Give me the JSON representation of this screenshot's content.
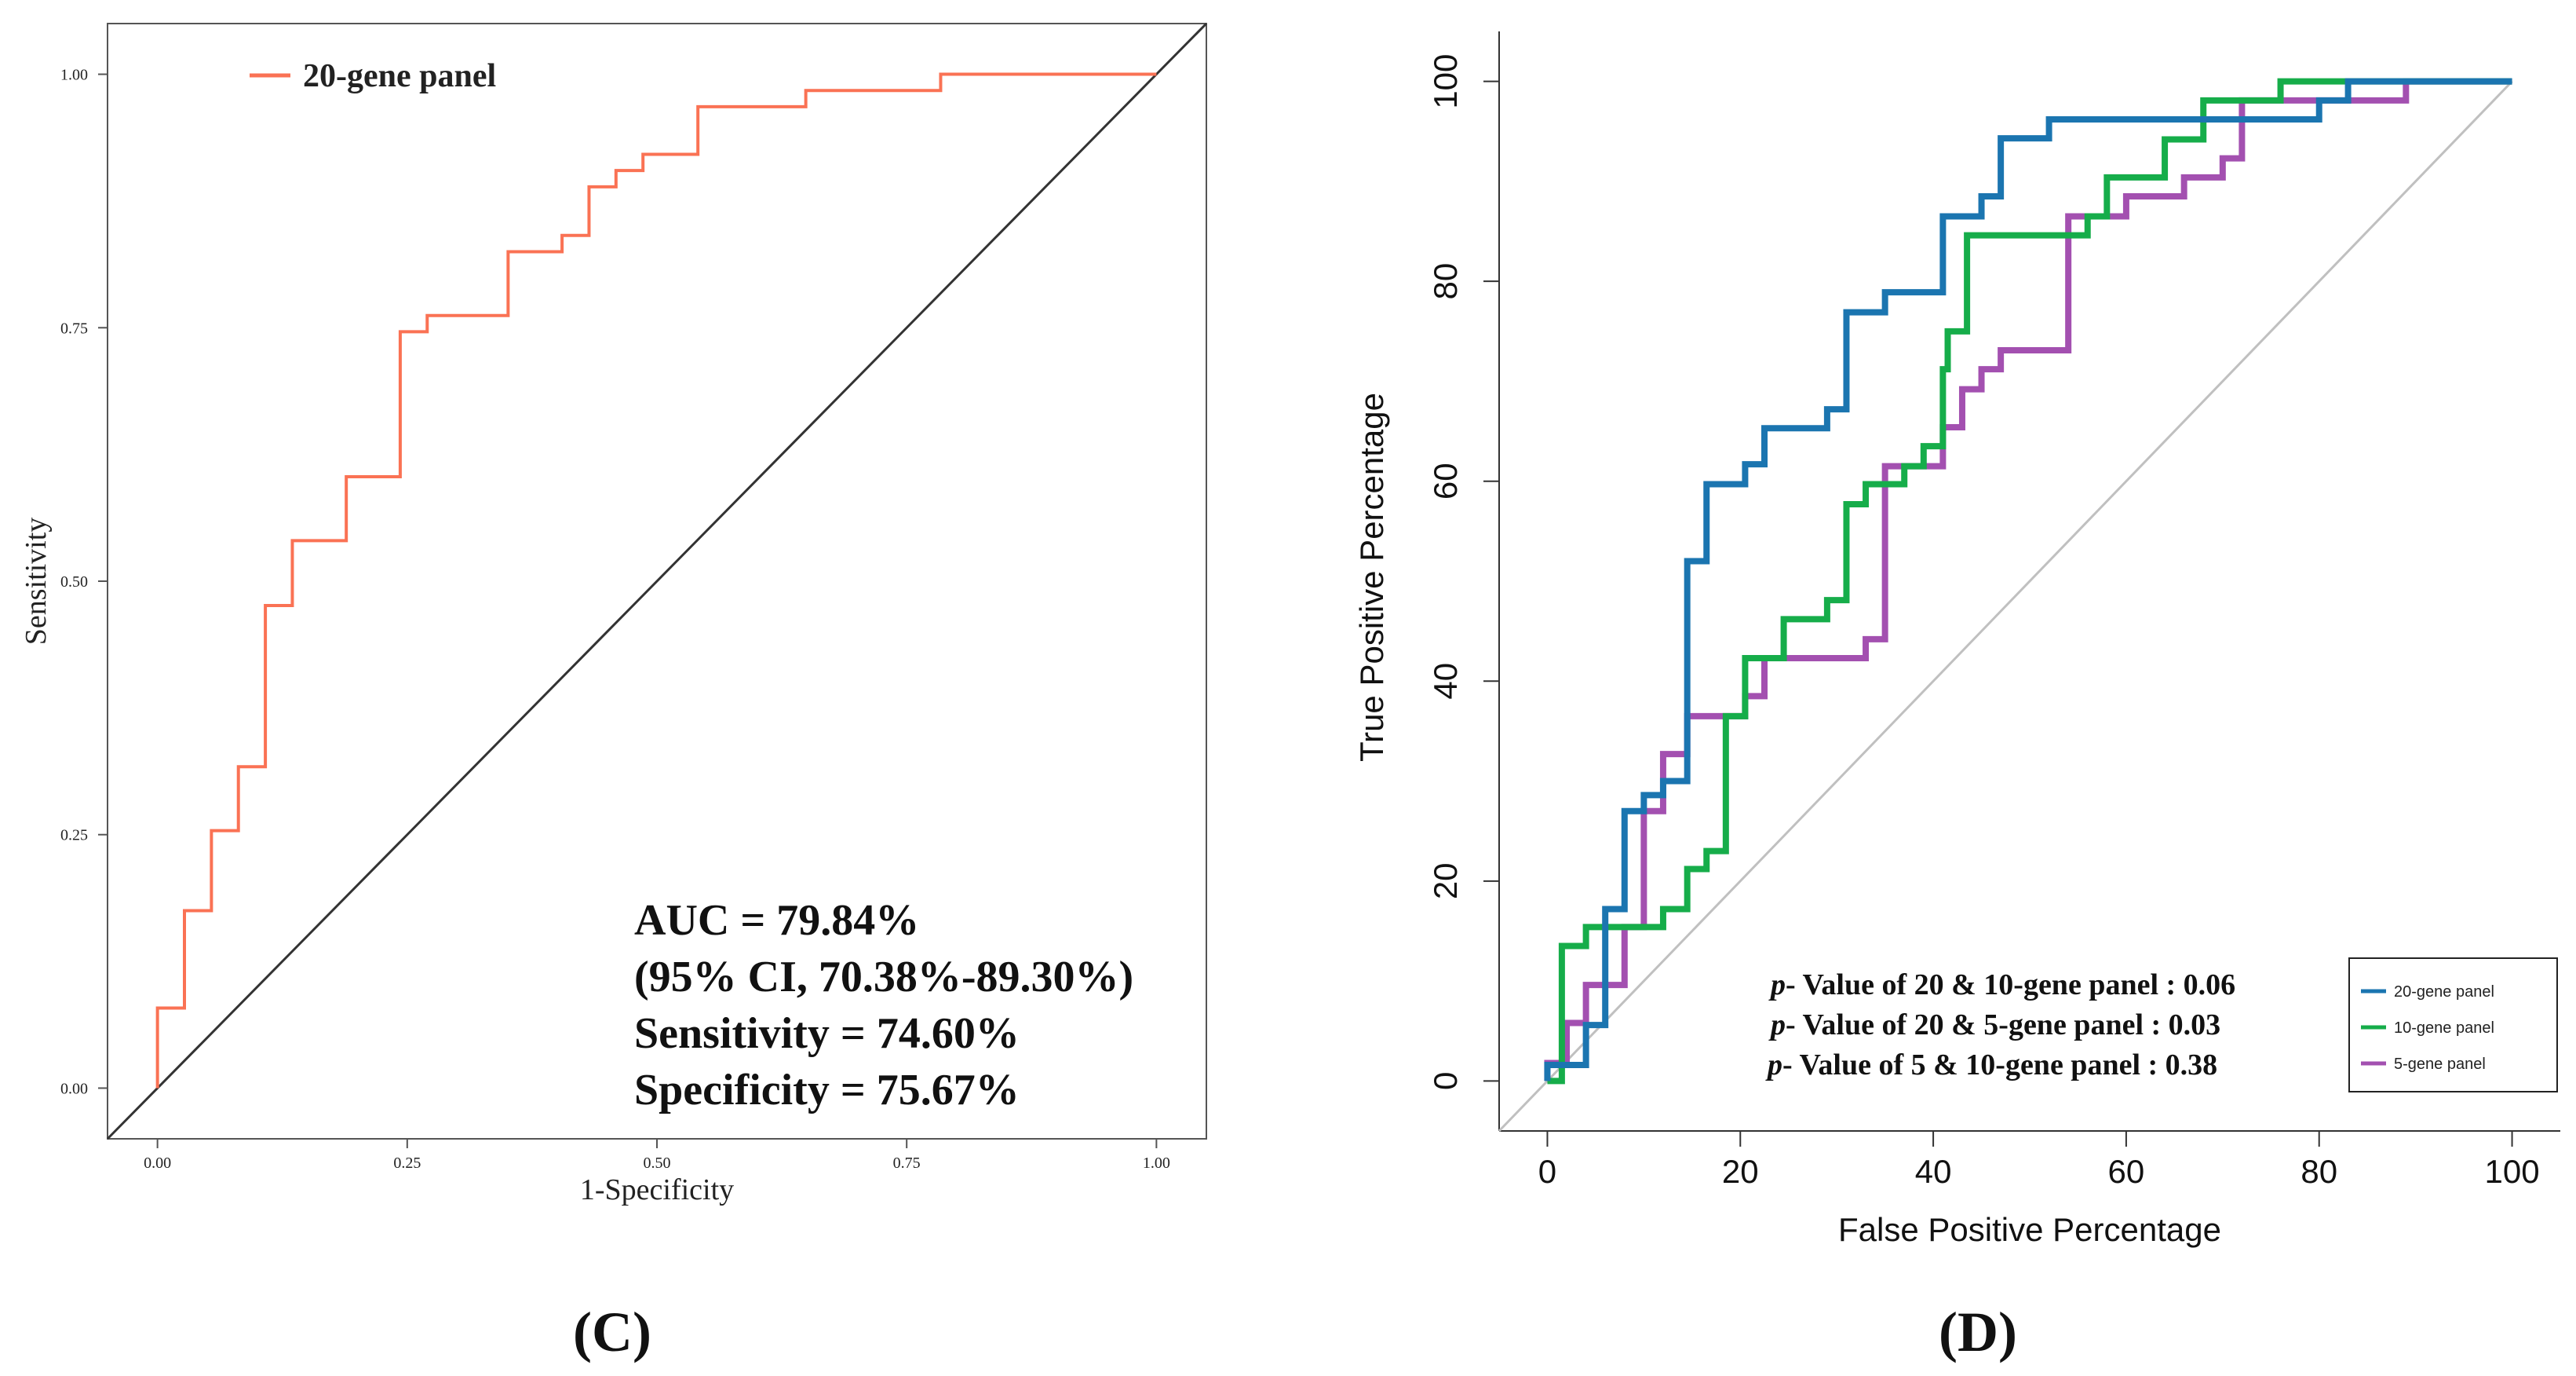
{
  "panels": {
    "left_letter": "(C)",
    "right_letter": "(D)"
  },
  "colors": {
    "orange": "#fa7254",
    "blue": "#1b75b0",
    "green": "#16ad4a",
    "purple": "#a350b0",
    "diagonal_dark": "#333333",
    "diagonal_light": "#c0c0c0",
    "axis": "#555555"
  },
  "chart_data": [
    {
      "id": "C",
      "type": "line",
      "title": "",
      "xlabel": "1-Specificity",
      "ylabel": "Sensitivity",
      "xlim": [
        -0.05,
        1.05
      ],
      "ylim": [
        -0.05,
        1.05
      ],
      "x_ticks": [
        0,
        0.25,
        0.5,
        0.75,
        1.0
      ],
      "x_tick_labels": [
        "0.00",
        "0.25",
        "0.50",
        "0.75",
        "1.00"
      ],
      "y_ticks": [
        0,
        0.25,
        0.5,
        0.75,
        1.0
      ],
      "y_tick_labels": [
        "0.00",
        "0.25",
        "0.50",
        "0.75",
        "1.00"
      ],
      "legend": [
        {
          "label": "20-gene panel",
          "color": "#fa7254"
        }
      ],
      "annotations": [
        "AUC = 79.84%",
        "(95% CI, 70.38%-89.30%)",
        "Sensitivity = 74.60%",
        "Specificity = 75.67%"
      ],
      "reference_line": [
        [
          -0.05,
          -0.05
        ],
        [
          1.05,
          1.05
        ]
      ],
      "series": [
        {
          "name": "20-gene panel",
          "color": "#fa7254",
          "points": [
            [
              0,
              0
            ],
            [
              0,
              0.079
            ],
            [
              0.027,
              0.079
            ],
            [
              0.027,
              0.175
            ],
            [
              0.054,
              0.175
            ],
            [
              0.054,
              0.254
            ],
            [
              0.081,
              0.254
            ],
            [
              0.081,
              0.317
            ],
            [
              0.108,
              0.317
            ],
            [
              0.108,
              0.476
            ],
            [
              0.135,
              0.476
            ],
            [
              0.135,
              0.54
            ],
            [
              0.189,
              0.54
            ],
            [
              0.189,
              0.603
            ],
            [
              0.243,
              0.603
            ],
            [
              0.243,
              0.746
            ],
            [
              0.27,
              0.746
            ],
            [
              0.27,
              0.762
            ],
            [
              0.351,
              0.762
            ],
            [
              0.351,
              0.825
            ],
            [
              0.405,
              0.825
            ],
            [
              0.405,
              0.841
            ],
            [
              0.432,
              0.841
            ],
            [
              0.432,
              0.889
            ],
            [
              0.459,
              0.889
            ],
            [
              0.459,
              0.905
            ],
            [
              0.486,
              0.905
            ],
            [
              0.486,
              0.921
            ],
            [
              0.541,
              0.921
            ],
            [
              0.541,
              0.968
            ],
            [
              0.649,
              0.968
            ],
            [
              0.649,
              0.984
            ],
            [
              0.784,
              0.984
            ],
            [
              0.784,
              1.0
            ],
            [
              1.0,
              1.0
            ]
          ]
        }
      ]
    },
    {
      "id": "D",
      "type": "line",
      "title": "",
      "xlabel": "False Positive Percentage",
      "ylabel": "True Positive Percentage",
      "xlim": [
        -5,
        105
      ],
      "ylim": [
        -5,
        105
      ],
      "x_ticks": [
        0,
        20,
        40,
        60,
        80,
        100
      ],
      "y_ticks": [
        0,
        20,
        40,
        60,
        80,
        100
      ],
      "legend": [
        {
          "label": "20-gene panel",
          "color": "#1b75b0"
        },
        {
          "label": "10-gene panel",
          "color": "#16ad4a"
        },
        {
          "label": "5-gene panel",
          "color": "#a350b0"
        }
      ],
      "annotations": [
        {
          "p": "p",
          "rest": "- Value of 20 & 10-gene panel : 0.06"
        },
        {
          "p": "p",
          "rest": "- Value of 20 & 5-gene panel : 0.03"
        },
        {
          "p": "p",
          "rest": "- Value of 5 & 10-gene panel : 0.38"
        }
      ],
      "reference_line": [
        [
          -5,
          -5
        ],
        [
          100,
          100
        ]
      ],
      "series": [
        {
          "name": "20-gene panel",
          "color": "#1b75b0",
          "points": [
            [
              0,
              0
            ],
            [
              0,
              1.6
            ],
            [
              4,
              1.6
            ],
            [
              4,
              5.6
            ],
            [
              6,
              5.6
            ],
            [
              6,
              17.2
            ],
            [
              8,
              17.2
            ],
            [
              8,
              27
            ],
            [
              10,
              27
            ],
            [
              10,
              28.6
            ],
            [
              12,
              28.6
            ],
            [
              12,
              30
            ],
            [
              14.5,
              30
            ],
            [
              14.5,
              52
            ],
            [
              16.5,
              52
            ],
            [
              16.5,
              59.7
            ],
            [
              20.5,
              59.7
            ],
            [
              20.5,
              61.7
            ],
            [
              22.5,
              61.7
            ],
            [
              22.5,
              65.3
            ],
            [
              29,
              65.3
            ],
            [
              29,
              67.2
            ],
            [
              31,
              67.2
            ],
            [
              31,
              76.9
            ],
            [
              35,
              76.9
            ],
            [
              35,
              78.9
            ],
            [
              41,
              78.9
            ],
            [
              41,
              86.5
            ],
            [
              45,
              86.5
            ],
            [
              45,
              88.5
            ],
            [
              47,
              88.5
            ],
            [
              47,
              94.3
            ],
            [
              52,
              94.3
            ],
            [
              52,
              96.2
            ],
            [
              80,
              96.2
            ],
            [
              80,
              98.1
            ],
            [
              83,
              98.1
            ],
            [
              83,
              100
            ],
            [
              100,
              100
            ]
          ]
        },
        {
          "name": "10-gene panel",
          "color": "#16ad4a",
          "points": [
            [
              0,
              0
            ],
            [
              1.5,
              0
            ],
            [
              1.5,
              13.5
            ],
            [
              4,
              13.5
            ],
            [
              4,
              15.4
            ],
            [
              12,
              15.4
            ],
            [
              12,
              17.2
            ],
            [
              14.5,
              17.2
            ],
            [
              14.5,
              21.2
            ],
            [
              16.5,
              21.2
            ],
            [
              16.5,
              23
            ],
            [
              18.5,
              23
            ],
            [
              18.5,
              36.5
            ],
            [
              20.5,
              36.5
            ],
            [
              20.5,
              42.3
            ],
            [
              24.5,
              42.3
            ],
            [
              24.5,
              46.2
            ],
            [
              29,
              46.2
            ],
            [
              29,
              48.1
            ],
            [
              31,
              48.1
            ],
            [
              31,
              57.7
            ],
            [
              33,
              57.7
            ],
            [
              33,
              59.7
            ],
            [
              37,
              59.7
            ],
            [
              37,
              61.5
            ],
            [
              39,
              61.5
            ],
            [
              39,
              63.5
            ],
            [
              41,
              63.5
            ],
            [
              41,
              71.2
            ],
            [
              41.5,
              71.2
            ],
            [
              41.5,
              75
            ],
            [
              43.5,
              75
            ],
            [
              43.5,
              84.6
            ],
            [
              56,
              84.6
            ],
            [
              56,
              86.5
            ],
            [
              58,
              86.5
            ],
            [
              58,
              90.4
            ],
            [
              64,
              90.4
            ],
            [
              64,
              94.2
            ],
            [
              68,
              94.2
            ],
            [
              68,
              98.1
            ],
            [
              76,
              98.1
            ],
            [
              76,
              100
            ],
            [
              100,
              100
            ]
          ]
        },
        {
          "name": "5-gene panel",
          "color": "#a350b0",
          "points": [
            [
              0,
              0
            ],
            [
              0,
              1.8
            ],
            [
              2,
              1.8
            ],
            [
              2,
              5.8
            ],
            [
              4,
              5.8
            ],
            [
              4,
              9.6
            ],
            [
              8,
              9.6
            ],
            [
              8,
              15.4
            ],
            [
              10,
              15.4
            ],
            [
              10,
              27
            ],
            [
              12,
              27
            ],
            [
              12,
              32.7
            ],
            [
              14.5,
              32.7
            ],
            [
              14.5,
              36.5
            ],
            [
              20.5,
              36.5
            ],
            [
              20.5,
              38.5
            ],
            [
              22.5,
              38.5
            ],
            [
              22.5,
              42.3
            ],
            [
              33,
              42.3
            ],
            [
              33,
              44.2
            ],
            [
              35,
              44.2
            ],
            [
              35,
              61.5
            ],
            [
              41,
              61.5
            ],
            [
              41,
              65.4
            ],
            [
              43,
              65.4
            ],
            [
              43,
              69.2
            ],
            [
              45,
              69.2
            ],
            [
              45,
              71.2
            ],
            [
              47,
              71.2
            ],
            [
              47,
              73.1
            ],
            [
              54,
              73.1
            ],
            [
              54,
              86.5
            ],
            [
              60,
              86.5
            ],
            [
              60,
              88.5
            ],
            [
              66,
              88.5
            ],
            [
              66,
              90.4
            ],
            [
              70,
              90.4
            ],
            [
              70,
              92.3
            ],
            [
              72,
              92.3
            ],
            [
              72,
              98.1
            ],
            [
              89,
              98.1
            ],
            [
              89,
              100
            ],
            [
              100,
              100
            ]
          ]
        }
      ]
    }
  ]
}
